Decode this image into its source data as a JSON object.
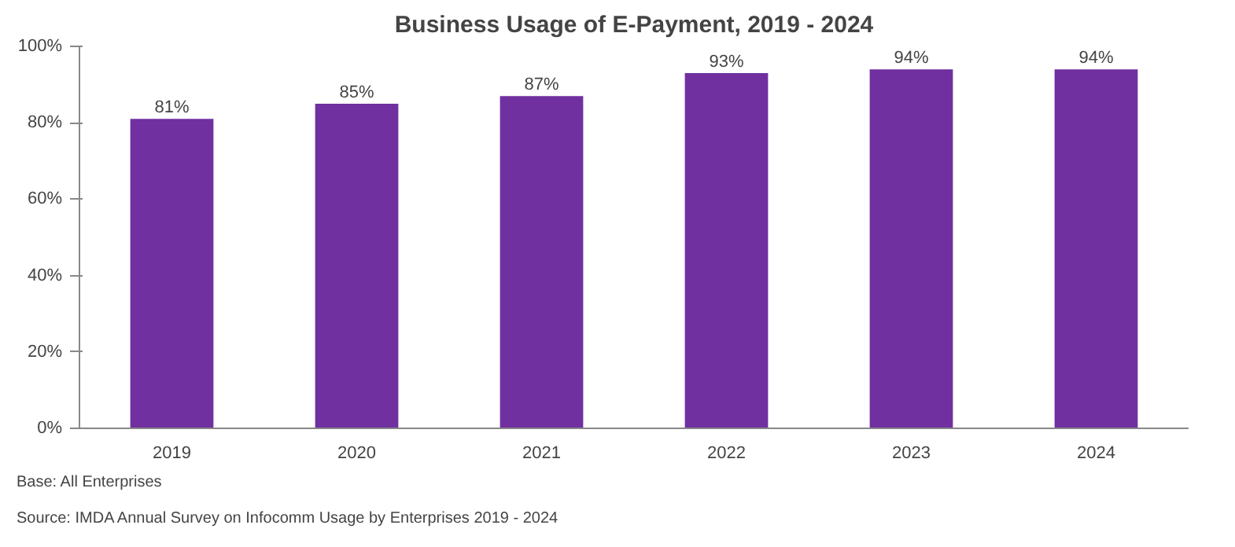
{
  "chart_data": {
    "type": "bar",
    "title": "Business Usage of E-Payment, 2019 - 2024",
    "categories": [
      "2019",
      "2020",
      "2021",
      "2022",
      "2023",
      "2024"
    ],
    "values": [
      81,
      85,
      87,
      93,
      94,
      94
    ],
    "value_labels": [
      "81%",
      "85%",
      "87%",
      "93%",
      "94%",
      "94%"
    ],
    "color": "#7030a0",
    "ylim": [
      0,
      100
    ],
    "yticks": [
      {
        "value": 0,
        "label": "0%"
      },
      {
        "value": 20,
        "label": "20%"
      },
      {
        "value": 40,
        "label": "40%"
      },
      {
        "value": 60,
        "label": "60%"
      },
      {
        "value": 80,
        "label": "80%"
      },
      {
        "value": 100,
        "label": "100%"
      }
    ],
    "grid": false,
    "annotations": [
      "Base: All Enterprises",
      "Source: IMDA Annual Survey on Infocomm Usage by Enterprises 2019 - 2024"
    ]
  }
}
